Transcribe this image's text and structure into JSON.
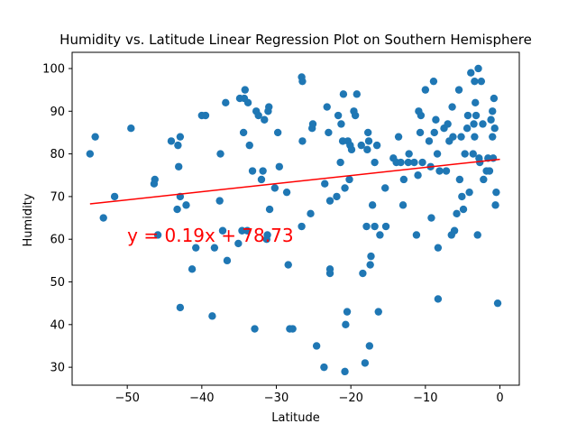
{
  "chart_data": {
    "type": "scatter",
    "title": "Humidity vs. Latitude Linear Regression Plot on Southern Hemisphere",
    "xlabel": "Latitude",
    "ylabel": "Humidity",
    "xlim": [
      -57.4,
      2.6
    ],
    "ylim": [
      25.8,
      103.8
    ],
    "xticks": [
      -50,
      -40,
      -30,
      -20,
      -10,
      0
    ],
    "yticks": [
      30,
      40,
      50,
      60,
      70,
      80,
      90,
      100
    ],
    "grid": false,
    "colors": {
      "points": "#1f77b4",
      "line": "#ff0000",
      "annotation": "#ff0000"
    },
    "series": [
      {
        "points": [
          [
            -55,
            80
          ],
          [
            -54.3,
            84
          ],
          [
            -53.2,
            65
          ],
          [
            -51.7,
            70
          ],
          [
            -49.5,
            86
          ],
          [
            -46.4,
            73
          ],
          [
            -46.3,
            74
          ],
          [
            -45.9,
            61
          ],
          [
            -44.1,
            83
          ],
          [
            -43.3,
            67
          ],
          [
            -43.2,
            82
          ],
          [
            -43.1,
            77
          ],
          [
            -42.9,
            70
          ],
          [
            -42.9,
            84
          ],
          [
            -42.9,
            44
          ],
          [
            -42.1,
            68
          ],
          [
            -41.3,
            53
          ],
          [
            -40.8,
            58
          ],
          [
            -40,
            89
          ],
          [
            -39.5,
            89
          ],
          [
            -38.6,
            42
          ],
          [
            -38.3,
            58
          ],
          [
            -37.6,
            69
          ],
          [
            -37.5,
            80
          ],
          [
            -37.2,
            62
          ],
          [
            -36.6,
            55
          ],
          [
            -36.8,
            92
          ],
          [
            -35.1,
            59
          ],
          [
            -34.9,
            93
          ],
          [
            -34.6,
            62
          ],
          [
            -34.4,
            85
          ],
          [
            -34.3,
            93
          ],
          [
            -34.2,
            95
          ],
          [
            -33.9,
            62
          ],
          [
            -33.8,
            92
          ],
          [
            -33.6,
            82
          ],
          [
            -33.2,
            76
          ],
          [
            -32.9,
            39
          ],
          [
            -32.7,
            90
          ],
          [
            -32.4,
            89
          ],
          [
            -32,
            74
          ],
          [
            -31.8,
            76
          ],
          [
            -31.6,
            88
          ],
          [
            -31.3,
            60
          ],
          [
            -31.2,
            61
          ],
          [
            -31.1,
            90
          ],
          [
            -31,
            91
          ],
          [
            -30.9,
            67
          ],
          [
            -30.2,
            72
          ],
          [
            -29.8,
            85
          ],
          [
            -29.6,
            77
          ],
          [
            -28.6,
            71
          ],
          [
            -28.4,
            54
          ],
          [
            -28.2,
            39
          ],
          [
            -27.8,
            39
          ],
          [
            -26.6,
            63
          ],
          [
            -26.6,
            98
          ],
          [
            -26.5,
            97
          ],
          [
            -26.5,
            83
          ],
          [
            -25.4,
            66
          ],
          [
            -25.2,
            86
          ],
          [
            -25.1,
            87
          ],
          [
            -24.6,
            35
          ],
          [
            -23.6,
            30
          ],
          [
            -23.5,
            73
          ],
          [
            -23.2,
            91
          ],
          [
            -23,
            85
          ],
          [
            -22.8,
            52
          ],
          [
            -22.8,
            53
          ],
          [
            -22.8,
            69
          ],
          [
            -21.9,
            70
          ],
          [
            -21.7,
            89
          ],
          [
            -21.4,
            78
          ],
          [
            -21.3,
            87
          ],
          [
            -21.1,
            83
          ],
          [
            -21,
            94
          ],
          [
            -20.8,
            72
          ],
          [
            -20.8,
            29
          ],
          [
            -20.7,
            40
          ],
          [
            -20.5,
            43
          ],
          [
            -20.4,
            83
          ],
          [
            -20.2,
            74
          ],
          [
            -20.1,
            82
          ],
          [
            -19.9,
            81
          ],
          [
            -19.6,
            90
          ],
          [
            -19.4,
            89
          ],
          [
            -19.2,
            94
          ],
          [
            -18.6,
            82
          ],
          [
            -18.4,
            52
          ],
          [
            -18.1,
            31
          ],
          [
            -17.9,
            63
          ],
          [
            -17.8,
            81
          ],
          [
            -17.7,
            85
          ],
          [
            -17.6,
            83
          ],
          [
            -17.5,
            35
          ],
          [
            -17.4,
            54
          ],
          [
            -17.3,
            56
          ],
          [
            -17.1,
            68
          ],
          [
            -16.8,
            78
          ],
          [
            -16.8,
            63
          ],
          [
            -16.5,
            82
          ],
          [
            -16.3,
            43
          ],
          [
            -16.1,
            61
          ],
          [
            -15.4,
            72
          ],
          [
            -15.3,
            63
          ],
          [
            -14.3,
            79
          ],
          [
            -13.9,
            78
          ],
          [
            -13.6,
            84
          ],
          [
            -13.3,
            78
          ],
          [
            -13,
            68
          ],
          [
            -12.9,
            74
          ],
          [
            -12.3,
            78
          ],
          [
            -12.2,
            80
          ],
          [
            -11.5,
            78
          ],
          [
            -11.2,
            61
          ],
          [
            -11,
            75
          ],
          [
            -10.9,
            90
          ],
          [
            -10.7,
            85
          ],
          [
            -10.6,
            89
          ],
          [
            -10.4,
            78
          ],
          [
            -10,
            95
          ],
          [
            -9.5,
            83
          ],
          [
            -9.3,
            77
          ],
          [
            -9.2,
            65
          ],
          [
            -8.9,
            97
          ],
          [
            -8.8,
            85
          ],
          [
            -8.6,
            88
          ],
          [
            -8.4,
            80
          ],
          [
            -8.3,
            46
          ],
          [
            -8.3,
            58
          ],
          [
            -8.1,
            76
          ],
          [
            -7.5,
            86
          ],
          [
            -7.2,
            76
          ],
          [
            -7,
            87
          ],
          [
            -6.8,
            83
          ],
          [
            -6.5,
            61
          ],
          [
            -6.4,
            91
          ],
          [
            -6.3,
            84
          ],
          [
            -6.1,
            62
          ],
          [
            -5.8,
            66
          ],
          [
            -5.5,
            95
          ],
          [
            -5.4,
            74
          ],
          [
            -5.2,
            84
          ],
          [
            -5.1,
            70
          ],
          [
            -4.9,
            67
          ],
          [
            -4.7,
            80
          ],
          [
            -4.4,
            86
          ],
          [
            -4.3,
            89
          ],
          [
            -4.1,
            71
          ],
          [
            -3.9,
            99
          ],
          [
            -3.6,
            80
          ],
          [
            -3.5,
            87
          ],
          [
            -3.4,
            97
          ],
          [
            -3.4,
            84
          ],
          [
            -3.3,
            92
          ],
          [
            -3.2,
            89
          ],
          [
            -3,
            61
          ],
          [
            -2.9,
            100
          ],
          [
            -2.8,
            79
          ],
          [
            -2.7,
            78
          ],
          [
            -2.5,
            97
          ],
          [
            -2.3,
            87
          ],
          [
            -2.2,
            74
          ],
          [
            -1.8,
            76
          ],
          [
            -1.6,
            79
          ],
          [
            -1.4,
            76
          ],
          [
            -1.2,
            88
          ],
          [
            -1,
            90
          ],
          [
            -1,
            84
          ],
          [
            -0.9,
            79
          ],
          [
            -0.8,
            93
          ],
          [
            -0.7,
            86
          ],
          [
            -0.6,
            68
          ],
          [
            -0.5,
            71
          ],
          [
            -0.3,
            45
          ]
        ]
      }
    ],
    "regression": {
      "slope": 0.19,
      "intercept": 78.73,
      "x_range": [
        -55,
        0
      ]
    },
    "annotation": {
      "text": "y = 0.19x + 78.73",
      "x": -50,
      "y": 60
    }
  }
}
